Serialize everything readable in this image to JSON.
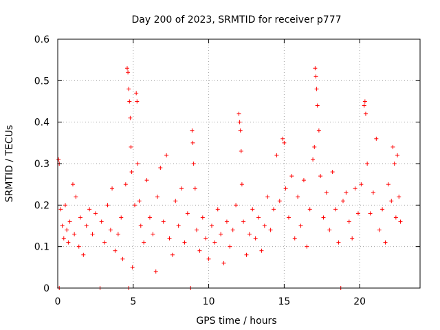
{
  "chart_data": {
    "type": "scatter",
    "title": "Day 200 of 2023, SRMTID for receiver p777",
    "xlabel": "GPS time / hours",
    "ylabel": "SRMTID / TECUs",
    "xlim": [
      0,
      24
    ],
    "ylim": [
      0,
      0.6
    ],
    "xticks": [
      0,
      5,
      10,
      15,
      20
    ],
    "xtick_labels": [
      "0",
      "5",
      "10",
      "15",
      "20"
    ],
    "yticks": [
      0,
      0.1,
      0.2,
      0.3,
      0.4,
      0.5,
      0.6
    ],
    "ytick_labels": [
      "0",
      "0.1",
      "0.2",
      "0.3",
      "0.4",
      "0.5",
      "0.6"
    ],
    "grid": true,
    "marker": "plus",
    "color": "#ff0000",
    "series": [
      {
        "name": "SRMTID",
        "points": [
          [
            0.05,
            0.31
          ],
          [
            0.1,
            0.3
          ],
          [
            0.1,
            0.0
          ],
          [
            0.2,
            0.19
          ],
          [
            0.3,
            0.15
          ],
          [
            0.4,
            0.12
          ],
          [
            0.5,
            0.2
          ],
          [
            0.6,
            0.14
          ],
          [
            0.7,
            0.11
          ],
          [
            0.8,
            0.16
          ],
          [
            1.0,
            0.25
          ],
          [
            1.1,
            0.13
          ],
          [
            1.2,
            0.22
          ],
          [
            1.4,
            0.1
          ],
          [
            1.5,
            0.17
          ],
          [
            1.7,
            0.08
          ],
          [
            1.9,
            0.15
          ],
          [
            2.1,
            0.19
          ],
          [
            2.3,
            0.13
          ],
          [
            2.5,
            0.18
          ],
          [
            2.8,
            0.0
          ],
          [
            2.9,
            0.16
          ],
          [
            3.1,
            0.11
          ],
          [
            3.3,
            0.2
          ],
          [
            3.5,
            0.14
          ],
          [
            3.6,
            0.24
          ],
          [
            3.8,
            0.09
          ],
          [
            4.0,
            0.13
          ],
          [
            4.2,
            0.17
          ],
          [
            4.3,
            0.07
          ],
          [
            4.5,
            0.25
          ],
          [
            4.6,
            0.53
          ],
          [
            4.65,
            0.52
          ],
          [
            4.7,
            0.48
          ],
          [
            4.75,
            0.45
          ],
          [
            4.8,
            0.41
          ],
          [
            4.85,
            0.34
          ],
          [
            4.9,
            0.28
          ],
          [
            4.95,
            0.05
          ],
          [
            4.7,
            0.0
          ],
          [
            5.1,
            0.2
          ],
          [
            5.2,
            0.47
          ],
          [
            5.25,
            0.45
          ],
          [
            5.3,
            0.3
          ],
          [
            5.4,
            0.21
          ],
          [
            5.5,
            0.15
          ],
          [
            5.7,
            0.11
          ],
          [
            5.9,
            0.26
          ],
          [
            6.1,
            0.17
          ],
          [
            6.3,
            0.13
          ],
          [
            6.5,
            0.04
          ],
          [
            6.6,
            0.22
          ],
          [
            6.8,
            0.29
          ],
          [
            7.0,
            0.16
          ],
          [
            7.2,
            0.32
          ],
          [
            7.4,
            0.12
          ],
          [
            7.6,
            0.08
          ],
          [
            7.8,
            0.21
          ],
          [
            8.0,
            0.15
          ],
          [
            8.2,
            0.24
          ],
          [
            8.4,
            0.11
          ],
          [
            8.6,
            0.18
          ],
          [
            8.8,
            0.0
          ],
          [
            8.9,
            0.38
          ],
          [
            8.95,
            0.35
          ],
          [
            9.0,
            0.3
          ],
          [
            9.1,
            0.24
          ],
          [
            9.2,
            0.14
          ],
          [
            9.4,
            0.09
          ],
          [
            9.6,
            0.17
          ],
          [
            9.8,
            0.12
          ],
          [
            10.0,
            0.07
          ],
          [
            10.2,
            0.15
          ],
          [
            10.4,
            0.11
          ],
          [
            10.6,
            0.19
          ],
          [
            10.8,
            0.13
          ],
          [
            11.0,
            0.06
          ],
          [
            11.2,
            0.16
          ],
          [
            11.4,
            0.1
          ],
          [
            11.6,
            0.14
          ],
          [
            11.8,
            0.2
          ],
          [
            12.0,
            0.42
          ],
          [
            12.05,
            0.4
          ],
          [
            12.1,
            0.38
          ],
          [
            12.15,
            0.33
          ],
          [
            12.2,
            0.25
          ],
          [
            12.3,
            0.16
          ],
          [
            12.5,
            0.08
          ],
          [
            12.7,
            0.13
          ],
          [
            12.9,
            0.19
          ],
          [
            13.1,
            0.12
          ],
          [
            13.3,
            0.17
          ],
          [
            13.5,
            0.09
          ],
          [
            13.7,
            0.15
          ],
          [
            13.9,
            0.22
          ],
          [
            14.1,
            0.14
          ],
          [
            14.3,
            0.19
          ],
          [
            14.5,
            0.32
          ],
          [
            14.7,
            0.21
          ],
          [
            14.9,
            0.36
          ],
          [
            15.0,
            0.35
          ],
          [
            15.1,
            0.24
          ],
          [
            15.3,
            0.17
          ],
          [
            15.5,
            0.27
          ],
          [
            15.7,
            0.12
          ],
          [
            15.9,
            0.22
          ],
          [
            16.1,
            0.15
          ],
          [
            16.3,
            0.26
          ],
          [
            16.5,
            0.1
          ],
          [
            16.7,
            0.19
          ],
          [
            16.9,
            0.31
          ],
          [
            17.0,
            0.34
          ],
          [
            17.05,
            0.53
          ],
          [
            17.1,
            0.51
          ],
          [
            17.15,
            0.48
          ],
          [
            17.2,
            0.44
          ],
          [
            17.3,
            0.38
          ],
          [
            17.4,
            0.27
          ],
          [
            17.6,
            0.17
          ],
          [
            17.8,
            0.23
          ],
          [
            18.0,
            0.14
          ],
          [
            18.2,
            0.28
          ],
          [
            18.4,
            0.19
          ],
          [
            18.6,
            0.11
          ],
          [
            18.75,
            0.0
          ],
          [
            18.9,
            0.21
          ],
          [
            19.1,
            0.23
          ],
          [
            19.3,
            0.16
          ],
          [
            19.5,
            0.12
          ],
          [
            19.7,
            0.24
          ],
          [
            19.9,
            0.18
          ],
          [
            20.1,
            0.25
          ],
          [
            20.3,
            0.44
          ],
          [
            20.35,
            0.45
          ],
          [
            20.4,
            0.42
          ],
          [
            20.5,
            0.3
          ],
          [
            20.7,
            0.18
          ],
          [
            20.9,
            0.23
          ],
          [
            21.1,
            0.36
          ],
          [
            21.3,
            0.14
          ],
          [
            21.5,
            0.19
          ],
          [
            21.7,
            0.11
          ],
          [
            21.9,
            0.25
          ],
          [
            22.1,
            0.21
          ],
          [
            22.2,
            0.34
          ],
          [
            22.3,
            0.3
          ],
          [
            22.4,
            0.17
          ],
          [
            22.5,
            0.32
          ],
          [
            22.6,
            0.22
          ],
          [
            22.7,
            0.16
          ]
        ]
      }
    ]
  }
}
